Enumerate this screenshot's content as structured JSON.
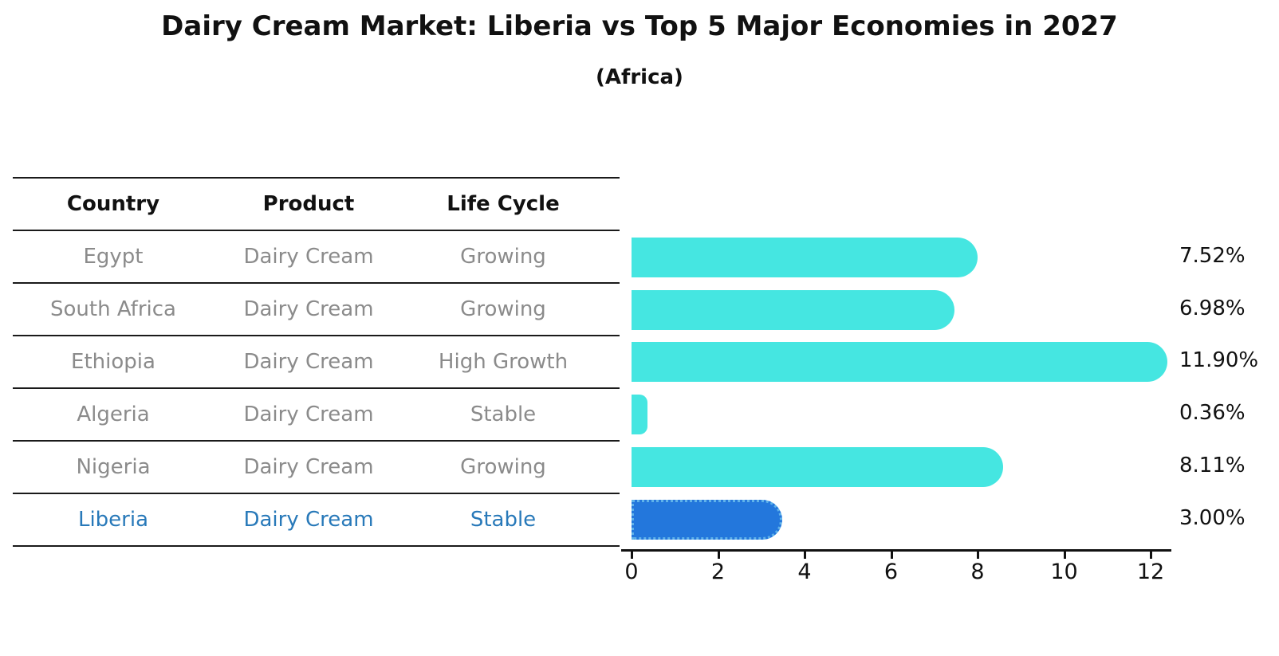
{
  "title": "Dairy Cream Market: Liberia vs Top 5 Major Economies in 2027",
  "subtitle": "(Africa)",
  "table": {
    "headers": [
      "Country",
      "Product",
      "Life Cycle"
    ]
  },
  "rows": [
    {
      "country": "Egypt",
      "product": "Dairy Cream",
      "life_cycle": "Growing",
      "value": 7.52,
      "label": "7.52%",
      "highlight": false
    },
    {
      "country": "South Africa",
      "product": "Dairy Cream",
      "life_cycle": "Growing",
      "value": 6.98,
      "label": "6.98%",
      "highlight": false
    },
    {
      "country": "Ethiopia",
      "product": "Dairy Cream",
      "life_cycle": "High Growth",
      "value": 11.9,
      "label": "11.90%",
      "highlight": false
    },
    {
      "country": "Algeria",
      "product": "Dairy Cream",
      "life_cycle": "Stable",
      "value": 0.36,
      "label": "0.36%",
      "highlight": false
    },
    {
      "country": "Nigeria",
      "product": "Dairy Cream",
      "life_cycle": "Growing",
      "value": 8.11,
      "label": "8.11%",
      "highlight": false
    },
    {
      "country": "Liberia",
      "product": "Dairy Cream",
      "life_cycle": "Stable",
      "value": 3.0,
      "label": "3.00%",
      "highlight": true
    }
  ],
  "chart_data": {
    "type": "bar",
    "orientation": "horizontal",
    "title": "Dairy Cream Market: Liberia vs Top 5 Major Economies in 2027",
    "subtitle": "(Africa)",
    "categories": [
      "Egypt",
      "South Africa",
      "Ethiopia",
      "Algeria",
      "Nigeria",
      "Liberia"
    ],
    "values": [
      7.52,
      6.98,
      11.9,
      0.36,
      8.11,
      3.0
    ],
    "value_labels": [
      "7.52%",
      "6.98%",
      "11.90%",
      "0.36%",
      "8.11%",
      "3.00%"
    ],
    "xlabel": "",
    "ylabel": "",
    "xlim": [
      0,
      12.4
    ],
    "x_ticks": [
      0,
      2,
      4,
      6,
      8,
      10,
      12
    ],
    "grid": false,
    "legend": "none",
    "bar_color": "#45e6e1",
    "highlight_color": "#2377dc",
    "highlight_index": 5
  },
  "colors": {
    "bar": "#45e6e1",
    "highlight_bar": "#2377dc",
    "highlight_border": "#5fb2ea",
    "row_text": "#8b8b8b",
    "highlight_text": "#2879b9",
    "line": "#1a1a1a"
  }
}
